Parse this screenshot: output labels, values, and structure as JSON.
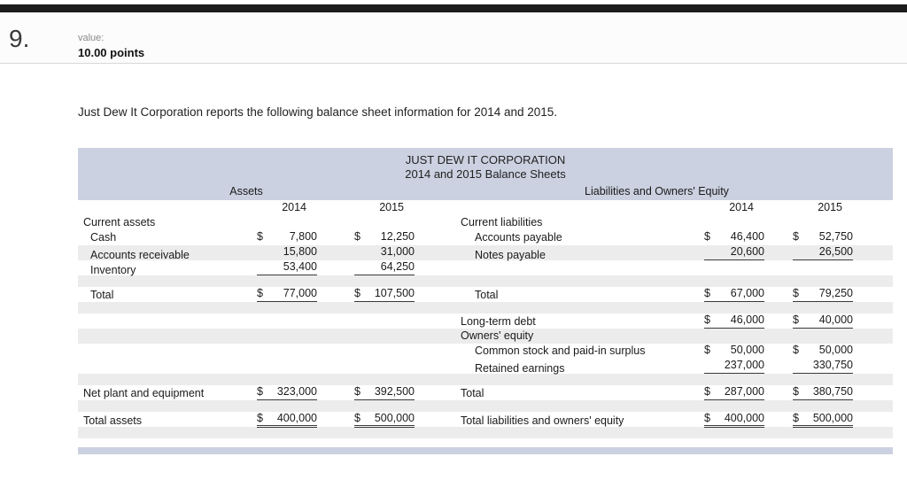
{
  "page": {
    "topbar_color": "#1c1c1c"
  },
  "header": {
    "question_number": "9.",
    "value_label": "value:",
    "points_label": "10.00 points"
  },
  "question_text": "Just Dew It Corporation reports the following balance sheet information for 2014 and 2015.",
  "table": {
    "title_line1": "JUST DEW IT CORPORATION",
    "title_line2": "2014 and 2015 Balance Sheets",
    "left_section_header": "Assets",
    "right_section_header": "Liabilities and Owners' Equity",
    "year_cols": [
      "2014",
      "2015",
      "2014",
      "2015"
    ],
    "colors": {
      "header_band": "#cbd1e0",
      "stripe": "#ececec",
      "rule": "#3a3a3a"
    },
    "rows": [
      {
        "bg": "w",
        "l": [
          "Current assets",
          0
        ],
        "r": [
          "Current liabilities",
          0
        ]
      },
      {
        "bg": "w",
        "l": [
          "Cash",
          1
        ],
        "l14": {
          "c": "$",
          "v": "7,800"
        },
        "l15": {
          "c": "$",
          "v": "12,250"
        },
        "r": [
          "Accounts payable",
          1
        ],
        "r14": {
          "c": "$",
          "v": "46,400"
        },
        "r15": {
          "c": "$",
          "v": "52,750"
        }
      },
      {
        "bg": "g",
        "l": [
          "Accounts receivable",
          1
        ],
        "l14": {
          "v": "15,800"
        },
        "l15": {
          "v": "31,000"
        },
        "r": [
          "Notes payable",
          1
        ],
        "r14": {
          "v": "20,600",
          "u": 1
        },
        "r15": {
          "v": "26,500",
          "u": 1
        }
      },
      {
        "bg": "w",
        "l": [
          "Inventory",
          1
        ],
        "l14": {
          "v": "53,400",
          "u": 1
        },
        "l15": {
          "v": "64,250",
          "u": 1
        }
      },
      {
        "bg": "g",
        "h": 13
      },
      {
        "bg": "w",
        "l": [
          "Total",
          1
        ],
        "l14": {
          "c": "$",
          "v": "77,000",
          "u": 1
        },
        "l15": {
          "c": "$",
          "v": "107,500",
          "u": 1
        },
        "r": [
          "Total",
          1
        ],
        "r14": {
          "c": "$",
          "v": "67,000",
          "u": 1
        },
        "r15": {
          "c": "$",
          "v": "79,250",
          "u": 1
        }
      },
      {
        "bg": "g",
        "h": 13
      },
      {
        "bg": "w",
        "r": [
          "Long-term debt",
          0
        ],
        "r14": {
          "c": "$",
          "v": "46,000",
          "u": 1
        },
        "r15": {
          "c": "$",
          "v": "40,000",
          "u": 1
        }
      },
      {
        "bg": "g",
        "r": [
          "Owners' equity",
          0
        ]
      },
      {
        "bg": "w",
        "r": [
          "Common stock and paid-in surplus",
          1
        ],
        "r14": {
          "c": "$",
          "v": "50,000"
        },
        "r15": {
          "c": "$",
          "v": "50,000"
        }
      },
      {
        "bg": "w",
        "r": [
          "Retained earnings",
          1
        ],
        "r14": {
          "v": "237,000",
          "u": 1
        },
        "r15": {
          "v": "330,750",
          "u": 1
        }
      },
      {
        "bg": "g",
        "h": 13
      },
      {
        "bg": "w",
        "l": [
          "Net plant and equipment",
          0
        ],
        "l14": {
          "c": "$",
          "v": "323,000",
          "u": 1
        },
        "l15": {
          "c": "$",
          "v": "392,500",
          "u": 1
        },
        "r": [
          "Total",
          0
        ],
        "r14": {
          "c": "$",
          "v": "287,000",
          "u": 1
        },
        "r15": {
          "c": "$",
          "v": "380,750",
          "u": 1
        }
      },
      {
        "bg": "g",
        "h": 13
      },
      {
        "bg": "w",
        "l": [
          "Total assets",
          0
        ],
        "l14": {
          "c": "$",
          "v": "400,000",
          "u": 2
        },
        "l15": {
          "c": "$",
          "v": "500,000",
          "u": 2
        },
        "r": [
          "Total liabilities and owners' equity",
          0
        ],
        "r14": {
          "c": "$",
          "v": "400,000",
          "u": 2
        },
        "r15": {
          "c": "$",
          "v": "500,000",
          "u": 2
        }
      },
      {
        "bg": "g",
        "h": 13
      }
    ]
  }
}
